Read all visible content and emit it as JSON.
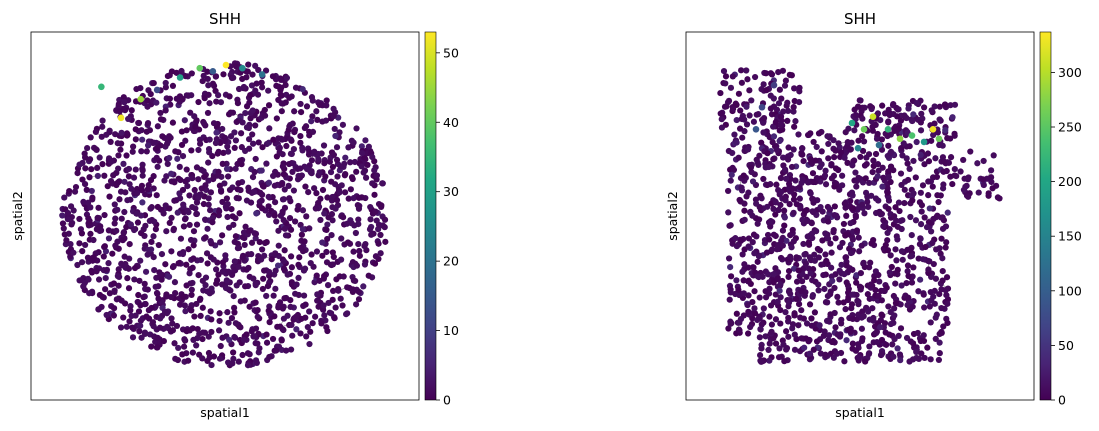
{
  "chart_data": [
    {
      "type": "scatter",
      "title": "SHH",
      "xlabel": "spatial1",
      "ylabel": "spatial2",
      "colorbar": {
        "colormap": "viridis",
        "range": [
          0,
          53
        ],
        "ticks": [
          0,
          10,
          20,
          30,
          40,
          50
        ]
      },
      "background_color": "#440154",
      "graph_edges_color": "#808080",
      "description_shape": "round tissue section with neighbour graph; high SHH along upper-left and top rim",
      "hotspots": [
        {
          "x": 0.12,
          "y": 0.08,
          "value": 35
        },
        {
          "x": 0.18,
          "y": 0.18,
          "value": 52
        },
        {
          "x": 0.24,
          "y": 0.12,
          "value": 45
        },
        {
          "x": 0.36,
          "y": 0.05,
          "value": 30
        },
        {
          "x": 0.42,
          "y": 0.02,
          "value": 40
        },
        {
          "x": 0.5,
          "y": 0.01,
          "value": 53
        },
        {
          "x": 0.55,
          "y": 0.02,
          "value": 25
        },
        {
          "x": 0.61,
          "y": 0.04,
          "value": 20
        },
        {
          "x": 0.46,
          "y": 0.03,
          "value": 15
        },
        {
          "x": 0.29,
          "y": 0.09,
          "value": 12
        }
      ]
    },
    {
      "type": "scatter",
      "title": "SHH",
      "xlabel": "spatial1",
      "ylabel": "spatial2",
      "colorbar": {
        "colormap": "viridis",
        "range": [
          0,
          337
        ],
        "ticks": [
          0,
          50,
          100,
          150,
          200,
          250,
          300
        ]
      },
      "background_color": "#440154",
      "graph_edges_color": "#808080",
      "description_shape": "irregular tissue section with holes; high SHH cluster in upper middle",
      "hotspots": [
        {
          "x": 0.48,
          "y": 0.2,
          "value": 200
        },
        {
          "x": 0.52,
          "y": 0.22,
          "value": 260
        },
        {
          "x": 0.55,
          "y": 0.18,
          "value": 310
        },
        {
          "x": 0.5,
          "y": 0.28,
          "value": 150
        },
        {
          "x": 0.57,
          "y": 0.27,
          "value": 120
        },
        {
          "x": 0.6,
          "y": 0.22,
          "value": 220
        },
        {
          "x": 0.64,
          "y": 0.25,
          "value": 280
        },
        {
          "x": 0.68,
          "y": 0.24,
          "value": 240
        },
        {
          "x": 0.72,
          "y": 0.26,
          "value": 180
        },
        {
          "x": 0.75,
          "y": 0.22,
          "value": 330
        },
        {
          "x": 0.77,
          "y": 0.25,
          "value": 260
        },
        {
          "x": 0.16,
          "y": 0.22,
          "value": 90
        },
        {
          "x": 0.18,
          "y": 0.15,
          "value": 70
        },
        {
          "x": 0.22,
          "y": 0.08,
          "value": 60
        }
      ]
    }
  ]
}
